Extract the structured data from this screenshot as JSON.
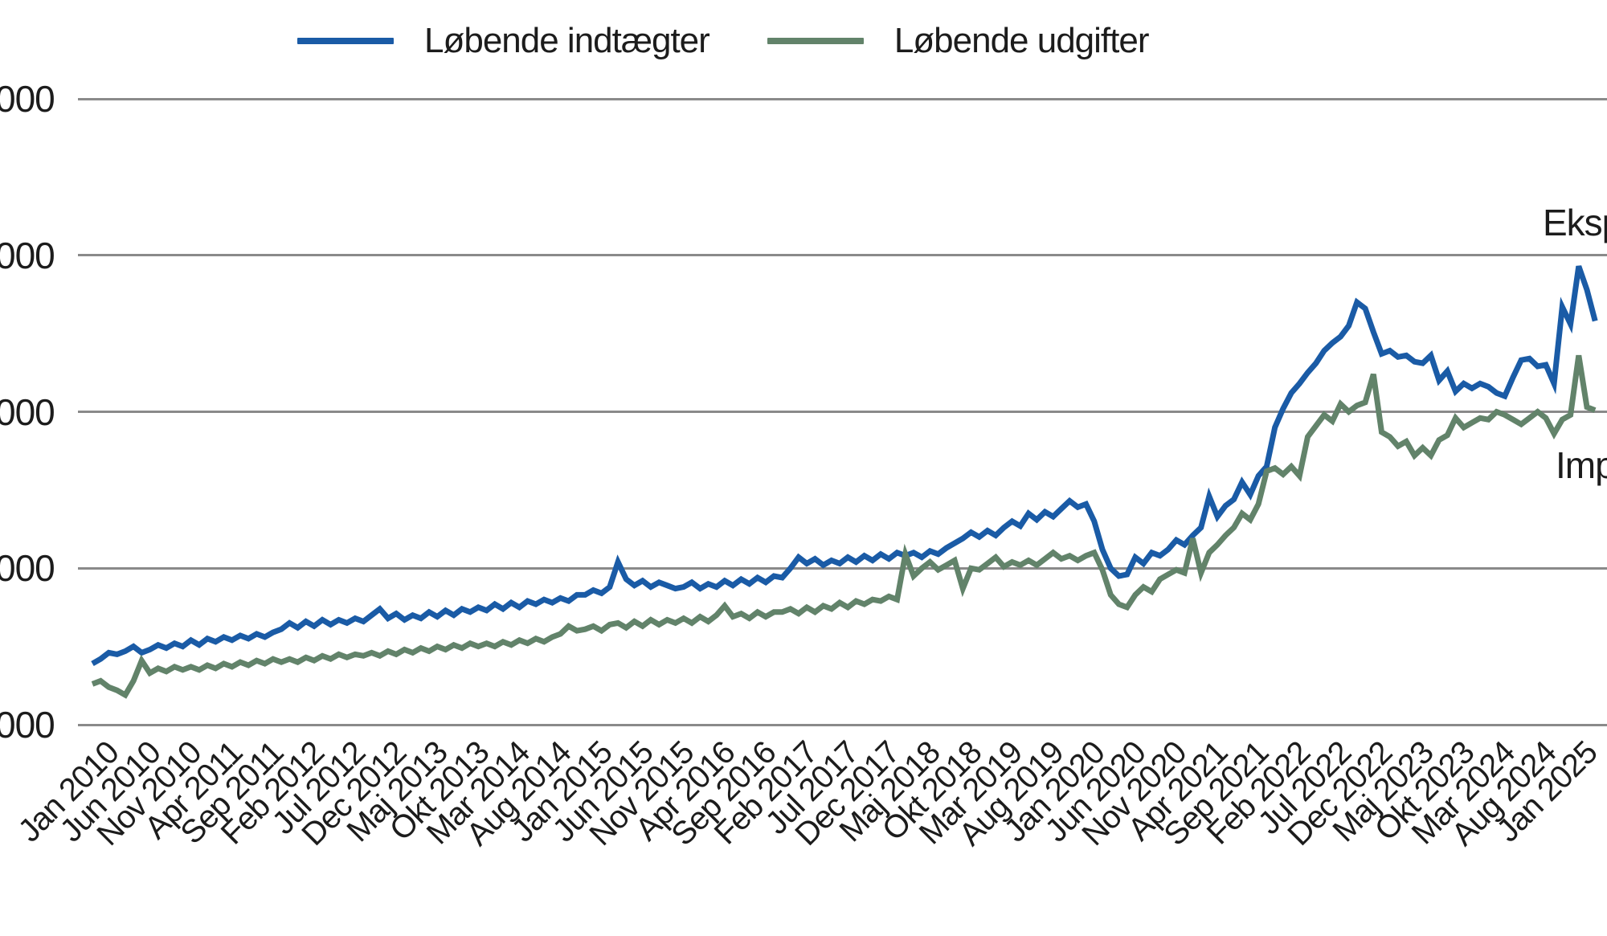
{
  "legend": {
    "items": [
      {
        "label": "Løbende indtægter",
        "color": "#1a5ba6"
      },
      {
        "label": "Løbende udgifter",
        "color": "#62836a"
      }
    ]
  },
  "y_axis": {
    "tick_labels": [
      "000",
      "000",
      "000",
      "000",
      "000"
    ],
    "tick_units": [
      4,
      3,
      2,
      1,
      0
    ],
    "truncated_at_left_edge": true
  },
  "x_axis": {
    "tick_labels": [
      "Jan 2010",
      "Jun 2010",
      "Nov 2010",
      "Apr 2011",
      "Sep 2011",
      "Feb 2012",
      "Jul 2012",
      "Dec 2012",
      "Maj 2013",
      "Okt 2013",
      "Mar 2014",
      "Aug 2014",
      "Jan 2015",
      "Jun 2015",
      "Nov 2015",
      "Apr 2016",
      "Sep 2016",
      "Feb 2017",
      "Jul 2017",
      "Dec 2017",
      "Maj 2018",
      "Okt 2018",
      "Mar 2019",
      "Aug 2019",
      "Jan 2020",
      "Jun 2020",
      "Nov 2020",
      "Apr 2021",
      "Sep 2021",
      "Feb 2022",
      "Jul 2022",
      "Dec 2022",
      "Maj 2023",
      "Okt 2023",
      "Mar 2024",
      "Aug 2024",
      "Jan 2025"
    ],
    "months_per_tick": 5
  },
  "annotations": [
    {
      "id": "eksport",
      "label": "Eksp",
      "truncated_at_right_edge": true
    },
    {
      "id": "import",
      "label": "Imp",
      "truncated_at_right_edge": true
    }
  ],
  "chart_data": {
    "type": "line",
    "title": "",
    "x_start": "Jan 2010",
    "x_end": "Apr 2025",
    "frequency": "monthly",
    "grid": "horizontal-only",
    "legend_position": "top",
    "y_tick_labels_visible": [
      "000",
      "000",
      "000",
      "000",
      "000"
    ],
    "y_gridline_units": [
      0,
      1,
      2,
      3,
      4
    ],
    "ylim_units": [
      0,
      4.35
    ],
    "series": [
      {
        "name": "Løbende indtægter",
        "color": "#1a5ba6",
        "values_grid_units": [
          0.39,
          0.42,
          0.46,
          0.45,
          0.47,
          0.5,
          0.46,
          0.48,
          0.51,
          0.49,
          0.52,
          0.5,
          0.54,
          0.51,
          0.55,
          0.53,
          0.56,
          0.54,
          0.57,
          0.55,
          0.58,
          0.56,
          0.59,
          0.61,
          0.65,
          0.62,
          0.66,
          0.63,
          0.67,
          0.64,
          0.67,
          0.65,
          0.68,
          0.66,
          0.7,
          0.74,
          0.68,
          0.71,
          0.67,
          0.7,
          0.68,
          0.72,
          0.69,
          0.73,
          0.7,
          0.74,
          0.72,
          0.75,
          0.73,
          0.77,
          0.74,
          0.78,
          0.75,
          0.79,
          0.77,
          0.8,
          0.78,
          0.81,
          0.79,
          0.83,
          0.83,
          0.86,
          0.84,
          0.88,
          1.04,
          0.93,
          0.89,
          0.92,
          0.88,
          0.91,
          0.89,
          0.87,
          0.88,
          0.91,
          0.87,
          0.9,
          0.88,
          0.92,
          0.89,
          0.93,
          0.9,
          0.94,
          0.91,
          0.95,
          0.94,
          1.0,
          1.07,
          1.03,
          1.06,
          1.02,
          1.05,
          1.03,
          1.07,
          1.04,
          1.08,
          1.05,
          1.09,
          1.06,
          1.1,
          1.08,
          1.1,
          1.07,
          1.11,
          1.09,
          1.13,
          1.16,
          1.19,
          1.23,
          1.2,
          1.24,
          1.21,
          1.26,
          1.3,
          1.27,
          1.35,
          1.31,
          1.36,
          1.33,
          1.38,
          1.43,
          1.39,
          1.41,
          1.3,
          1.12,
          1.0,
          0.95,
          0.96,
          1.07,
          1.03,
          1.1,
          1.08,
          1.12,
          1.18,
          1.15,
          1.21,
          1.26,
          1.46,
          1.33,
          1.4,
          1.44,
          1.55,
          1.47,
          1.59,
          1.65,
          1.9,
          2.02,
          2.12,
          2.18,
          2.25,
          2.31,
          2.39,
          2.44,
          2.48,
          2.55,
          2.7,
          2.66,
          2.51,
          2.37,
          2.39,
          2.35,
          2.36,
          2.32,
          2.31,
          2.36,
          2.2,
          2.26,
          2.13,
          2.18,
          2.15,
          2.18,
          2.16,
          2.12,
          2.1,
          2.22,
          2.33,
          2.34,
          2.29,
          2.3,
          2.18,
          2.67,
          2.56,
          2.93,
          2.78,
          2.58
        ]
      },
      {
        "name": "Løbende udgifter",
        "color": "#62836a",
        "values_grid_units": [
          0.26,
          0.28,
          0.24,
          0.22,
          0.19,
          0.28,
          0.41,
          0.33,
          0.36,
          0.34,
          0.37,
          0.35,
          0.37,
          0.35,
          0.38,
          0.36,
          0.39,
          0.37,
          0.4,
          0.38,
          0.41,
          0.39,
          0.42,
          0.4,
          0.42,
          0.4,
          0.43,
          0.41,
          0.44,
          0.42,
          0.45,
          0.43,
          0.45,
          0.44,
          0.46,
          0.44,
          0.47,
          0.45,
          0.48,
          0.46,
          0.49,
          0.47,
          0.5,
          0.48,
          0.51,
          0.49,
          0.52,
          0.5,
          0.52,
          0.5,
          0.53,
          0.51,
          0.54,
          0.52,
          0.55,
          0.53,
          0.56,
          0.58,
          0.63,
          0.6,
          0.61,
          0.63,
          0.6,
          0.64,
          0.65,
          0.62,
          0.66,
          0.63,
          0.67,
          0.64,
          0.67,
          0.65,
          0.68,
          0.65,
          0.69,
          0.66,
          0.7,
          0.76,
          0.69,
          0.71,
          0.68,
          0.72,
          0.69,
          0.72,
          0.72,
          0.74,
          0.71,
          0.75,
          0.72,
          0.76,
          0.74,
          0.78,
          0.75,
          0.79,
          0.77,
          0.8,
          0.79,
          0.82,
          0.8,
          1.09,
          0.95,
          1.0,
          1.04,
          0.99,
          1.02,
          1.05,
          0.87,
          1.0,
          0.99,
          1.03,
          1.07,
          1.01,
          1.04,
          1.02,
          1.05,
          1.02,
          1.06,
          1.1,
          1.06,
          1.08,
          1.05,
          1.08,
          1.1,
          0.99,
          0.83,
          0.77,
          0.75,
          0.83,
          0.88,
          0.85,
          0.93,
          0.96,
          0.99,
          0.97,
          1.19,
          0.97,
          1.1,
          1.15,
          1.21,
          1.26,
          1.35,
          1.31,
          1.41,
          1.62,
          1.64,
          1.6,
          1.65,
          1.59,
          1.84,
          1.91,
          1.98,
          1.94,
          2.05,
          2.0,
          2.04,
          2.06,
          2.24,
          1.87,
          1.84,
          1.78,
          1.81,
          1.72,
          1.77,
          1.72,
          1.82,
          1.85,
          1.96,
          1.9,
          1.93,
          1.96,
          1.95,
          2.0,
          1.98,
          1.95,
          1.92,
          1.96,
          2.0,
          1.96,
          1.86,
          1.95,
          1.98,
          2.36,
          2.03,
          2.01
        ]
      }
    ]
  }
}
